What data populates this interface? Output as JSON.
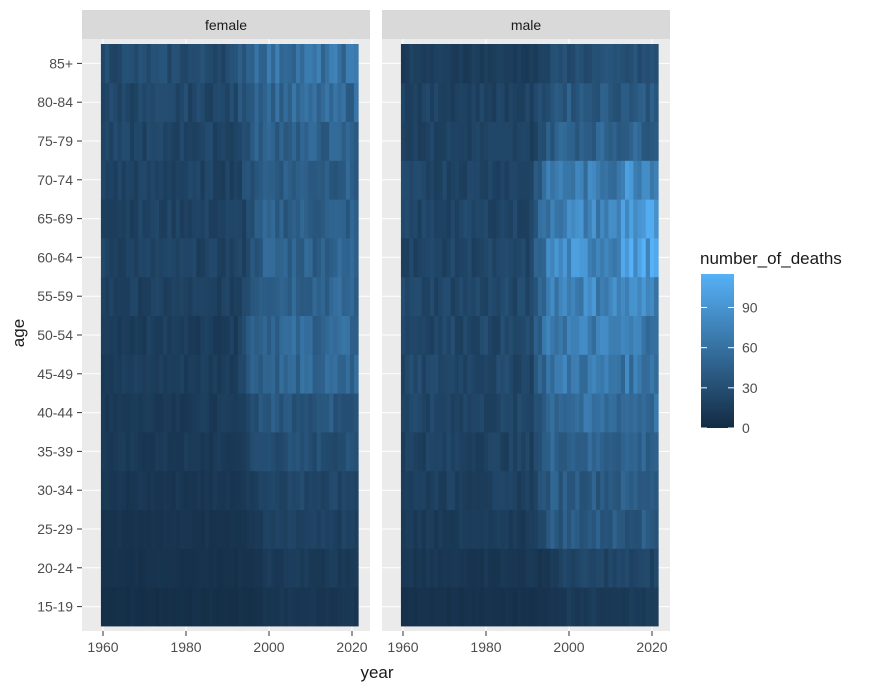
{
  "chart_data": {
    "type": "heatmap",
    "title": "",
    "xlabel": "year",
    "ylabel": "age",
    "facets": [
      "female",
      "male"
    ],
    "x_range": [
      1960,
      2021
    ],
    "x_ticks": [
      1960,
      1980,
      2000,
      2020
    ],
    "y_categories": [
      "15-19",
      "20-24",
      "25-29",
      "30-34",
      "35-39",
      "40-44",
      "45-49",
      "50-54",
      "55-59",
      "60-64",
      "65-69",
      "70-74",
      "75-79",
      "80-84",
      "85+"
    ],
    "fill_variable": "number_of_deaths",
    "fill_range": [
      0,
      115
    ],
    "legend_ticks": [
      0,
      30,
      60,
      90
    ],
    "legend_position": "right",
    "grid": true,
    "colors": {
      "low": "#132B43",
      "high": "#56B1F7",
      "panel": "#EBEBEB",
      "strip": "#D9D9D9",
      "grid": "#FFFFFF"
    },
    "series": [
      {
        "name": "female",
        "onset_year": [
          1997,
          1997,
          1996,
          1995,
          1994,
          1994,
          1993,
          1993,
          1994,
          1995,
          1995,
          1994,
          1994,
          1993,
          1993
        ],
        "level_before": [
          4,
          6,
          8,
          10,
          12,
          14,
          16,
          16,
          18,
          20,
          20,
          20,
          22,
          24,
          28
        ],
        "level_after": [
          10,
          14,
          18,
          24,
          30,
          38,
          50,
          52,
          50,
          48,
          44,
          44,
          46,
          52,
          60
        ]
      },
      {
        "name": "male",
        "onset_year": [
          1996,
          1996,
          1992,
          1992,
          1992,
          1992,
          1992,
          1992,
          1992,
          1992,
          1992,
          1992,
          1993,
          1993,
          1994
        ],
        "level_before": [
          6,
          10,
          14,
          18,
          20,
          22,
          24,
          24,
          24,
          22,
          22,
          22,
          20,
          20,
          16
        ],
        "level_after": [
          14,
          22,
          40,
          42,
          48,
          56,
          66,
          70,
          78,
          82,
          76,
          68,
          48,
          40,
          30
        ]
      }
    ]
  }
}
